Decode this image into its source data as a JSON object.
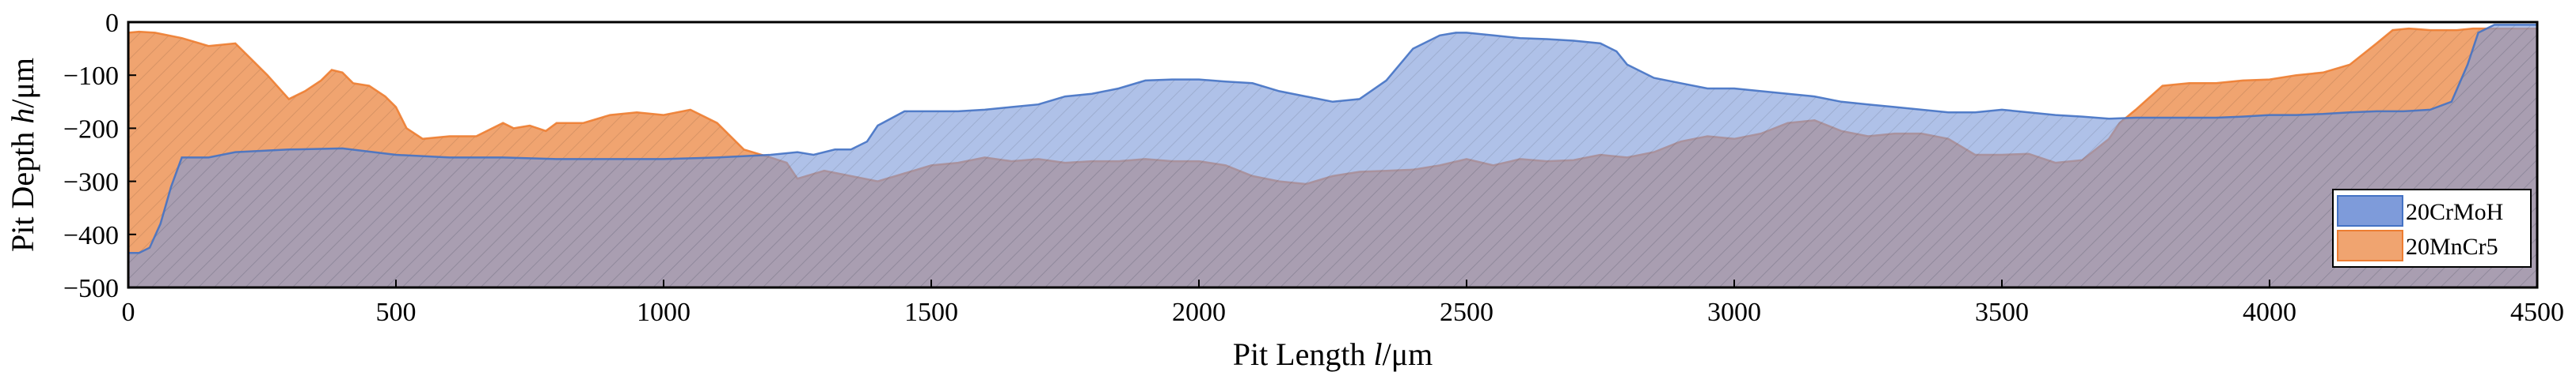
{
  "chart_data": {
    "type": "area",
    "title": "",
    "xlabel_main": "Pit Length ",
    "xlabel_symbol": "l",
    "xlabel_unit": "/μm",
    "ylabel_main": "Pit Depth ",
    "ylabel_symbol": "h",
    "ylabel_unit": "/μm",
    "xlim": [
      0,
      4500
    ],
    "ylim": [
      -500,
      0
    ],
    "xticks": [
      0,
      500,
      1000,
      1500,
      2000,
      2500,
      3000,
      3500,
      4000,
      4500
    ],
    "yticks": [
      0,
      -100,
      -200,
      -300,
      -400,
      -500
    ],
    "grid": false,
    "legend_position": "bottom-right",
    "series": [
      {
        "name": "20MnCr5",
        "color": "#ED7D31",
        "fill": "#F0A470",
        "x": [
          0,
          20,
          50,
          100,
          150,
          200,
          230,
          260,
          300,
          330,
          360,
          380,
          400,
          420,
          450,
          480,
          500,
          520,
          550,
          600,
          650,
          680,
          700,
          720,
          750,
          780,
          800,
          850,
          900,
          950,
          1000,
          1050,
          1100,
          1150,
          1200,
          1230,
          1250,
          1300,
          1350,
          1400,
          1450,
          1500,
          1550,
          1600,
          1650,
          1700,
          1750,
          1800,
          1850,
          1900,
          1950,
          2000,
          2050,
          2100,
          2150,
          2200,
          2250,
          2300,
          2350,
          2400,
          2450,
          2500,
          2550,
          2600,
          2650,
          2700,
          2750,
          2800,
          2850,
          2900,
          2950,
          3000,
          3050,
          3100,
          3150,
          3200,
          3250,
          3300,
          3350,
          3400,
          3450,
          3500,
          3550,
          3600,
          3650,
          3700,
          3720,
          3750,
          3800,
          3850,
          3900,
          3950,
          4000,
          4050,
          4100,
          4150,
          4200,
          4230,
          4260,
          4300,
          4350,
          4380,
          4400,
          4420,
          4450,
          4500
        ],
        "values": [
          -20,
          -18,
          -20,
          -30,
          -45,
          -40,
          -70,
          -100,
          -145,
          -130,
          -110,
          -90,
          -95,
          -115,
          -120,
          -140,
          -160,
          -200,
          -220,
          -215,
          -215,
          -200,
          -190,
          -200,
          -195,
          -205,
          -190,
          -190,
          -175,
          -170,
          -175,
          -165,
          -190,
          -240,
          -255,
          -265,
          -295,
          -280,
          -290,
          -300,
          -285,
          -270,
          -265,
          -255,
          -262,
          -258,
          -265,
          -262,
          -262,
          -258,
          -262,
          -262,
          -270,
          -290,
          -300,
          -305,
          -290,
          -282,
          -280,
          -278,
          -270,
          -258,
          -270,
          -258,
          -262,
          -260,
          -250,
          -255,
          -245,
          -225,
          -215,
          -220,
          -210,
          -190,
          -185,
          -205,
          -215,
          -210,
          -210,
          -220,
          -250,
          -250,
          -248,
          -265,
          -260,
          -220,
          -190,
          -165,
          -120,
          -115,
          -115,
          -110,
          -108,
          -100,
          -95,
          -80,
          -40,
          -15,
          -12,
          -15,
          -15,
          -12,
          -12,
          -12,
          -12,
          -12
        ]
      },
      {
        "name": "20CrMoH",
        "color": "#4472C4",
        "fill": "#7E9BDA",
        "x": [
          0,
          20,
          40,
          60,
          80,
          100,
          150,
          200,
          300,
          400,
          500,
          600,
          700,
          800,
          900,
          1000,
          1100,
          1200,
          1250,
          1280,
          1320,
          1350,
          1380,
          1400,
          1450,
          1500,
          1550,
          1600,
          1650,
          1700,
          1750,
          1800,
          1850,
          1900,
          1950,
          2000,
          2050,
          2100,
          2150,
          2200,
          2250,
          2300,
          2350,
          2400,
          2450,
          2480,
          2500,
          2550,
          2600,
          2650,
          2700,
          2750,
          2780,
          2800,
          2850,
          2900,
          2950,
          3000,
          3050,
          3100,
          3150,
          3200,
          3250,
          3300,
          3350,
          3400,
          3450,
          3500,
          3550,
          3600,
          3650,
          3700,
          3750,
          3800,
          3850,
          3900,
          3950,
          4000,
          4050,
          4100,
          4150,
          4200,
          4250,
          4300,
          4340,
          4370,
          4390,
          4420,
          4450,
          4500
        ],
        "values": [
          -435,
          -435,
          -425,
          -380,
          -310,
          -255,
          -255,
          -245,
          -240,
          -238,
          -250,
          -255,
          -255,
          -258,
          -258,
          -258,
          -255,
          -250,
          -245,
          -250,
          -240,
          -240,
          -225,
          -195,
          -168,
          -168,
          -168,
          -165,
          -160,
          -155,
          -140,
          -135,
          -125,
          -110,
          -108,
          -108,
          -112,
          -115,
          -130,
          -140,
          -150,
          -145,
          -110,
          -50,
          -25,
          -20,
          -20,
          -25,
          -30,
          -32,
          -35,
          -40,
          -55,
          -80,
          -105,
          -115,
          -125,
          -125,
          -130,
          -135,
          -140,
          -150,
          -155,
          -160,
          -165,
          -170,
          -170,
          -165,
          -170,
          -175,
          -178,
          -182,
          -180,
          -180,
          -180,
          -180,
          -178,
          -175,
          -175,
          -173,
          -170,
          -168,
          -168,
          -165,
          -150,
          -80,
          -20,
          -5,
          -5,
          -5
        ]
      }
    ]
  }
}
